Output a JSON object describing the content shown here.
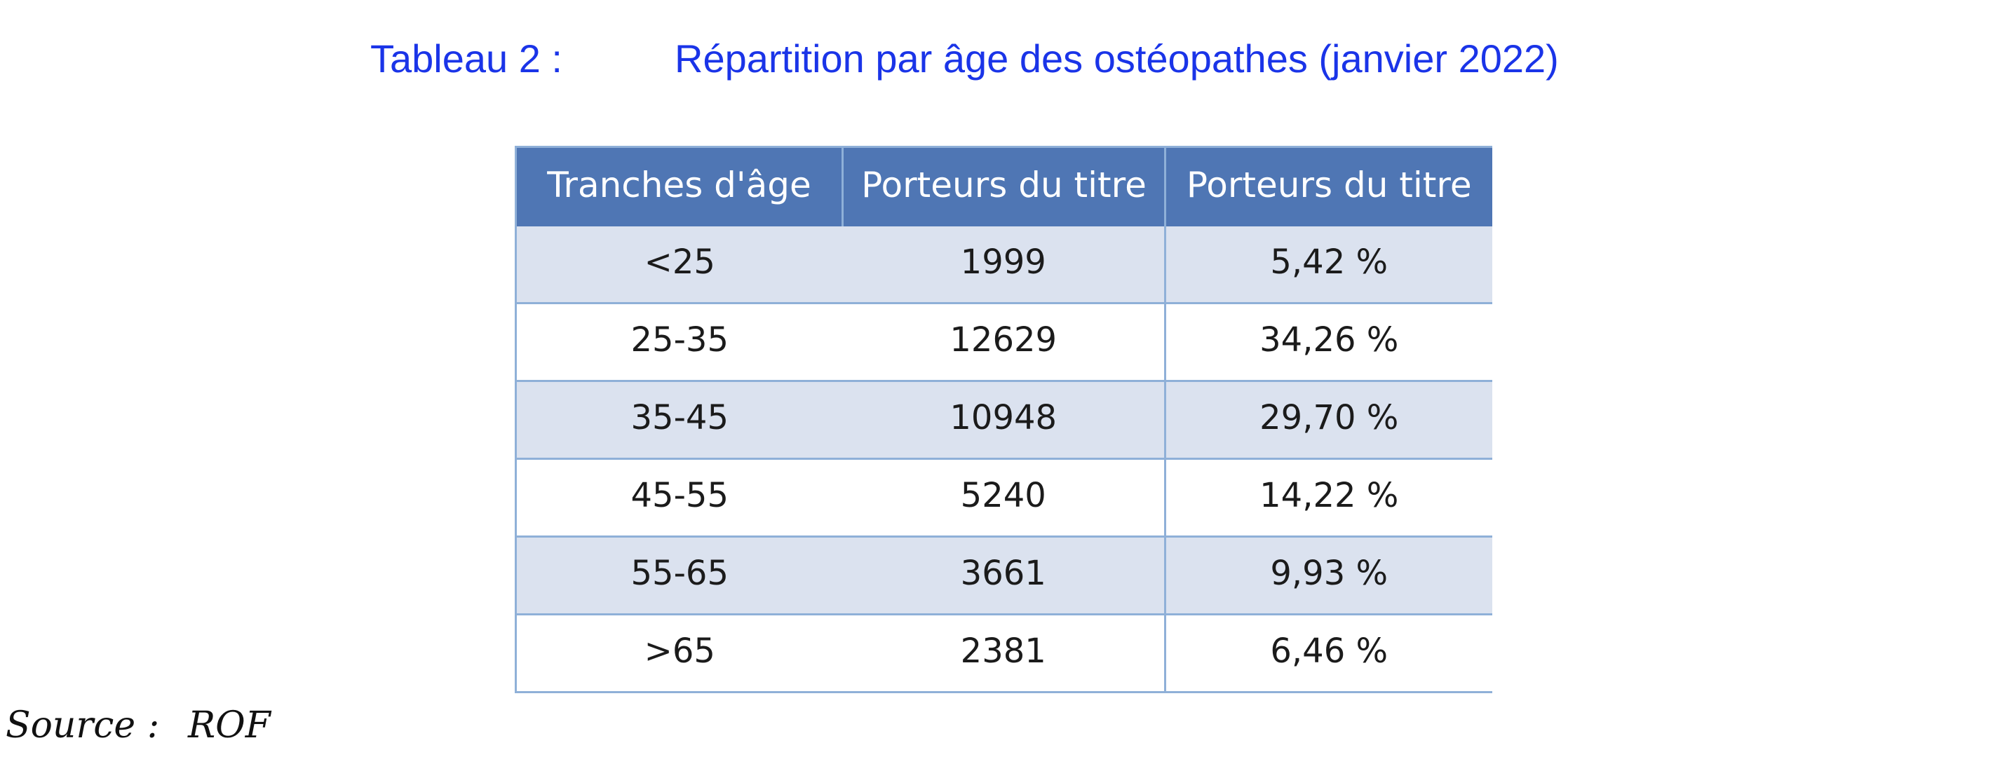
{
  "caption": {
    "label": "Tableau 2 :",
    "title": "Répartition par âge des ostéopathes (janvier 2022)"
  },
  "table": {
    "headers": [
      "Tranches d'âge",
      "Porteurs du titre",
      "Porteurs du titre"
    ],
    "rows": [
      [
        "<25",
        "1999",
        "5,42 %"
      ],
      [
        "25-35",
        "12629",
        "34,26 %"
      ],
      [
        "35-45",
        "10948",
        "29,70 %"
      ],
      [
        "45-55",
        "5240",
        "14,22 %"
      ],
      [
        "55-65",
        "3661",
        "9,93 %"
      ],
      [
        ">65",
        "2381",
        "6,46 %"
      ]
    ]
  },
  "source": {
    "label": "Source :",
    "value": "ROF"
  },
  "colors": {
    "caption_text": "#1a34e8",
    "header_background": "#4f76b4",
    "band_background": "#dbe2ef",
    "grid_lines": "#8fb0d8"
  }
}
